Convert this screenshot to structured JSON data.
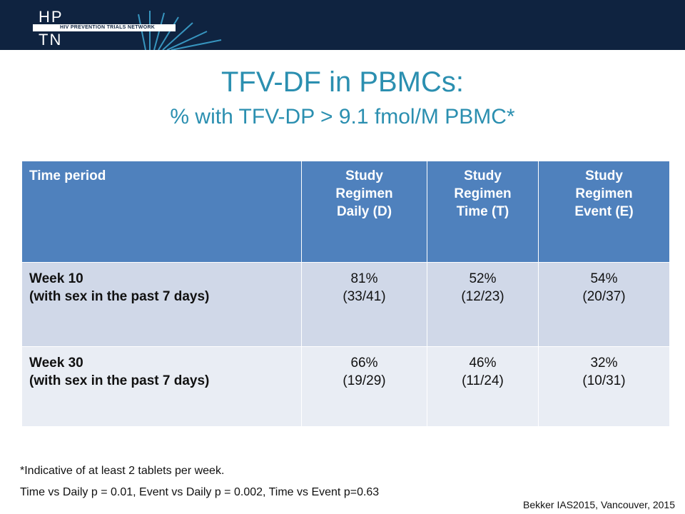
{
  "header": {
    "logo_letters_top": "HP",
    "logo_letters_bottom": "TN",
    "network_name": "HIV PREVENTION TRIALS NETWORK"
  },
  "title": "TFV-DF in PBMCs:",
  "subtitle": "% with TFV-DP > 9.1 fmol/M PBMC*",
  "table": {
    "headers": [
      [
        "Time period"
      ],
      [
        "Study",
        "Regimen",
        "Daily (D)"
      ],
      [
        "Study",
        "Regimen",
        "Time (T)"
      ],
      [
        "Study",
        "Regimen",
        "Event (E)"
      ]
    ],
    "rows": [
      {
        "label": [
          "Week 10",
          "(with sex in the past 7 days)"
        ],
        "cells": [
          [
            "81%",
            "(33/41)"
          ],
          [
            "52%",
            "(12/23)"
          ],
          [
            "54%",
            "(20/37)"
          ]
        ]
      },
      {
        "label": [
          "Week 30",
          "(with sex in the past 7 days)"
        ],
        "cells": [
          [
            "66%",
            "(19/29)"
          ],
          [
            "46%",
            "(11/24)"
          ],
          [
            "32%",
            "(10/31)"
          ]
        ]
      }
    ]
  },
  "footnote": "*Indicative of at least 2 tablets per week.",
  "stats": "Time vs Daily p = 0.01, Event vs Daily p = 0.002, Time vs Event p=0.63",
  "citation": "Bekker IAS2015, Vancouver, 2015",
  "colors": {
    "header_bg": "#0f2340",
    "title": "#2b8fb0",
    "table_header": "#4f81bd",
    "row_dark": "#d0d8e8",
    "row_light": "#e9edf4"
  }
}
